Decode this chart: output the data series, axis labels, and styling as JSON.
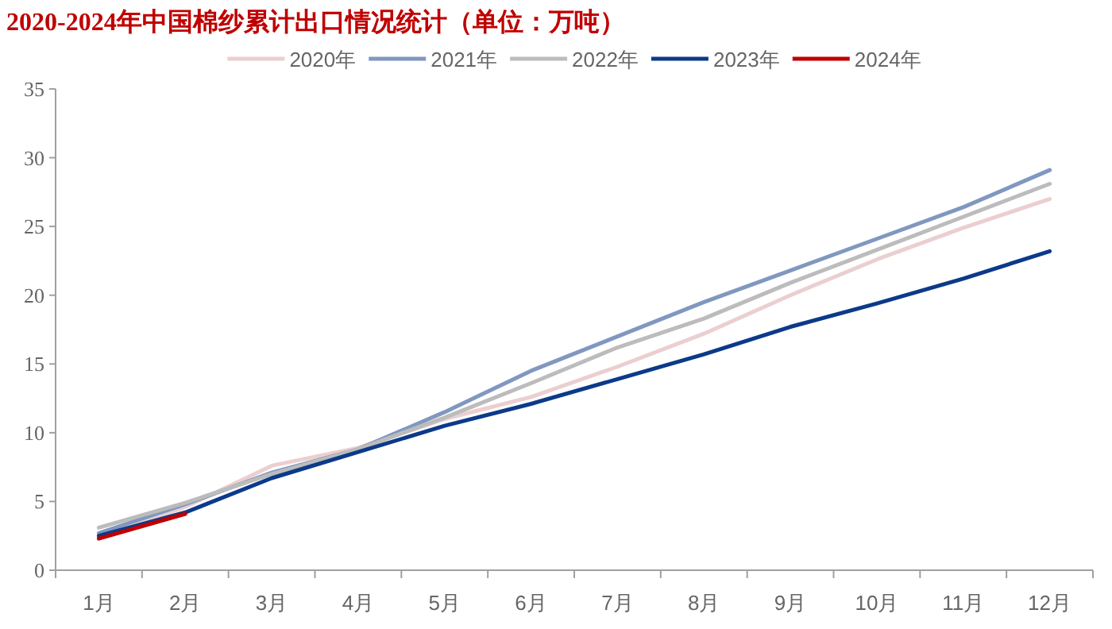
{
  "chart_data": {
    "type": "line",
    "title": "2020-2024年中国棉纱累计出口情况统计（单位：万吨）",
    "categories": [
      "1月",
      "2月",
      "3月",
      "4月",
      "5月",
      "6月",
      "7月",
      "8月",
      "9月",
      "10月",
      "11月",
      "12月"
    ],
    "ylim": [
      0,
      35
    ],
    "yticks": [
      0,
      5,
      10,
      15,
      20,
      25,
      30,
      35
    ],
    "grid": false,
    "legend": "top",
    "marker": "none",
    "line_style": "solid",
    "series": [
      {
        "name": "2020年",
        "color": "#ebcfd0",
        "values": [
          2.4,
          4.6,
          7.6,
          8.9,
          11.0,
          12.6,
          14.8,
          17.2,
          20.0,
          22.6,
          24.9,
          27.0
        ]
      },
      {
        "name": "2021年",
        "color": "#8098c0",
        "values": [
          2.7,
          4.8,
          7.1,
          8.8,
          11.5,
          14.5,
          17.0,
          19.5,
          21.8,
          24.1,
          26.4,
          29.1
        ]
      },
      {
        "name": "2022年",
        "color": "#bcbcbc",
        "values": [
          3.1,
          4.9,
          7.0,
          8.8,
          11.1,
          13.6,
          16.2,
          18.3,
          20.9,
          23.3,
          25.7,
          28.1
        ]
      },
      {
        "name": "2023年",
        "color": "#0c3a8a",
        "values": [
          2.5,
          4.2,
          6.7,
          8.6,
          10.5,
          12.1,
          13.9,
          15.7,
          17.7,
          19.4,
          21.2,
          23.2
        ]
      },
      {
        "name": "2024年",
        "color": "#c00000",
        "values": [
          2.3,
          4.1,
          null,
          null,
          null,
          null,
          null,
          null,
          null,
          null,
          null,
          null
        ]
      }
    ]
  }
}
